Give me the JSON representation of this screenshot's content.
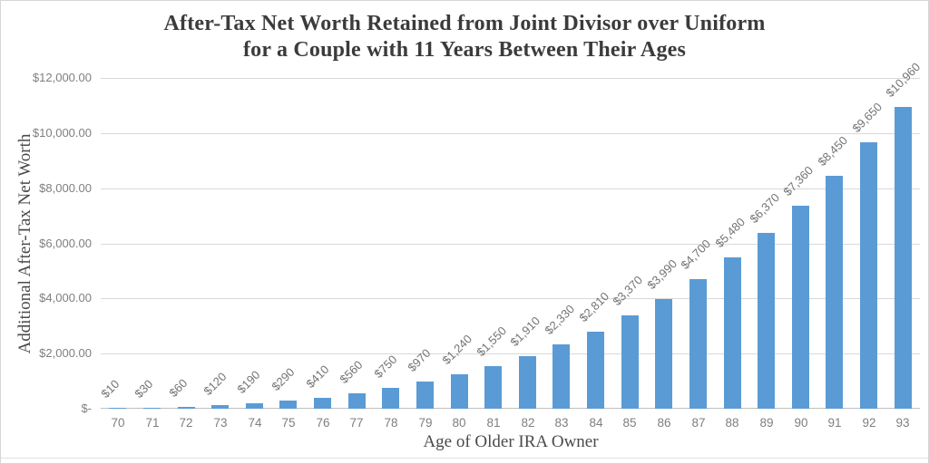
{
  "chart_data": {
    "type": "bar",
    "title_line1": "After-Tax Net Worth Retained from Joint Divisor over Uniform",
    "title_line2": "for a Couple with 11 Years Between Their Ages",
    "xlabel": "Age of Older IRA Owner",
    "ylabel": "Additional After-Tax Net Worth",
    "categories": [
      "70",
      "71",
      "72",
      "73",
      "74",
      "75",
      "76",
      "77",
      "78",
      "79",
      "80",
      "81",
      "82",
      "83",
      "84",
      "85",
      "86",
      "87",
      "88",
      "89",
      "90",
      "91",
      "92",
      "93"
    ],
    "values": [
      10,
      30,
      60,
      120,
      190,
      290,
      410,
      560,
      750,
      970,
      1240,
      1550,
      1910,
      2330,
      2810,
      3370,
      3990,
      4700,
      5480,
      6370,
      7360,
      8450,
      9650,
      10960
    ],
    "data_labels": [
      "$10",
      "$30",
      "$60",
      "$120",
      "$190",
      "$290",
      "$410",
      "$560",
      "$750",
      "$970",
      "$1,240",
      "$1,550",
      "$1,910",
      "$2,330",
      "$2,810",
      "$3,370",
      "$3,990",
      "$4,700",
      "$5,480",
      "$6,370",
      "$7,360",
      "$8,450",
      "$9,650",
      "$10,960"
    ],
    "y_tick_labels": [
      "$12,000.00",
      "$10,000.00",
      "$8,000.00",
      "$6,000.00",
      "$4,000.00",
      "$2,000.00",
      "$-"
    ],
    "ylim": [
      0,
      12000
    ],
    "grid": true,
    "legend": "none",
    "data_label_rotation_deg": -45,
    "colors": {
      "bar": "#5b9bd5",
      "gridline": "#d9d9d9",
      "axis_line": "#bfbfbf",
      "tick_label": "#7f7f7f",
      "data_label": "#737373",
      "title": "#3b3b3b",
      "axis_title": "#4a4a4a"
    }
  }
}
